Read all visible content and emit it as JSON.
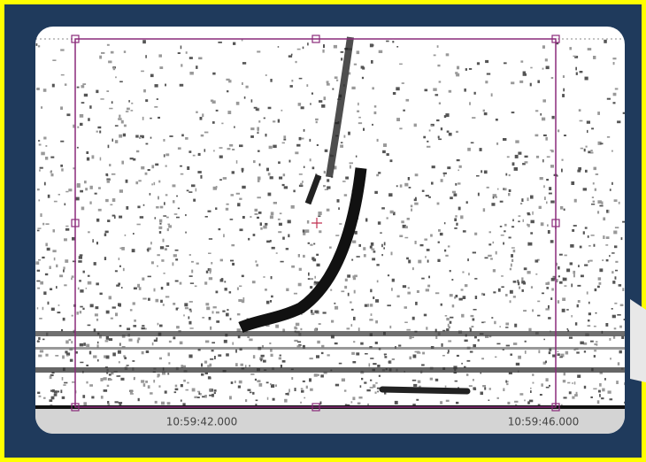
{
  "timeline": {
    "labels": [
      "10:59:42.000",
      "10:59:46.000"
    ]
  }
}
